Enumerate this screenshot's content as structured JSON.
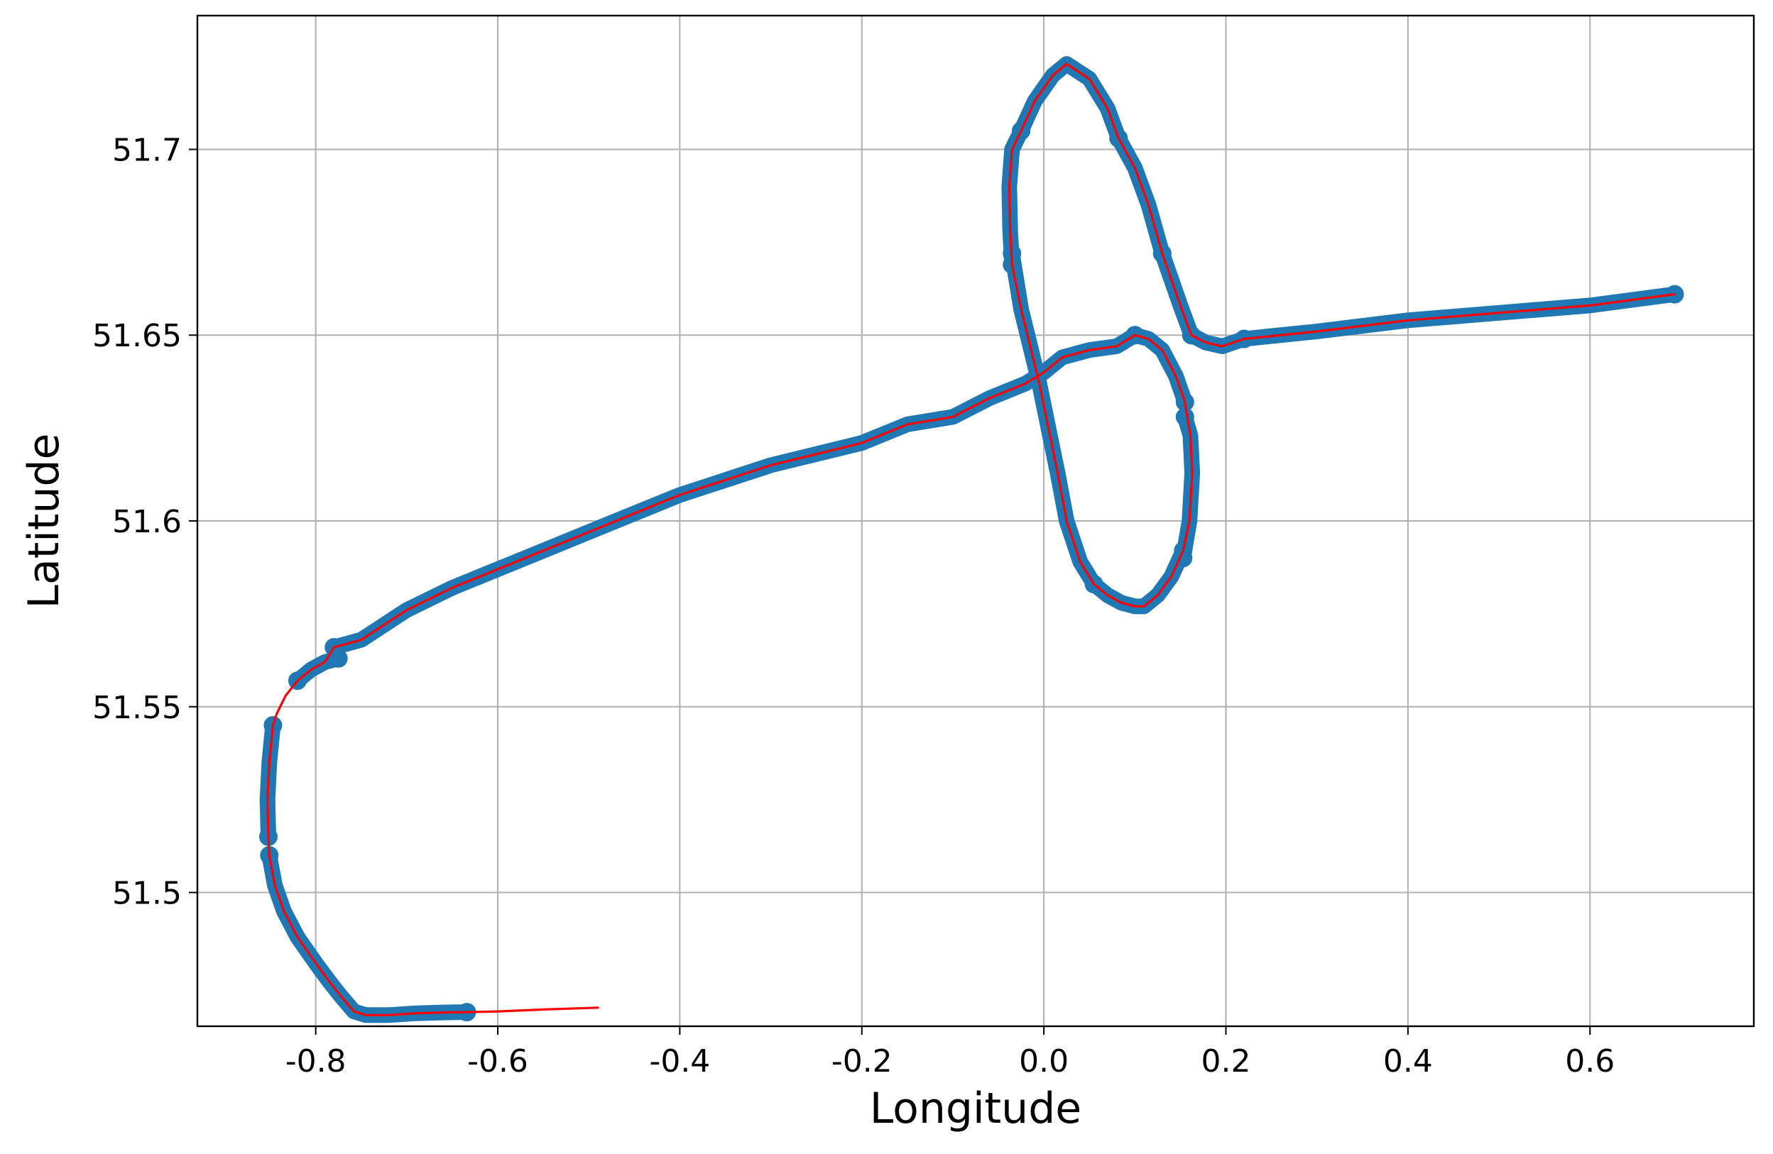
{
  "chart_data": {
    "type": "line",
    "title": "",
    "xlabel": "Longitude",
    "ylabel": "Latitude",
    "xlim": [
      -0.93,
      0.78
    ],
    "ylim": [
      51.464,
      51.736
    ],
    "x_ticks": [
      -0.8,
      -0.6,
      -0.4,
      -0.2,
      0.0,
      0.2,
      0.4,
      0.6
    ],
    "x_tick_labels": [
      "-0.8",
      "-0.6",
      "-0.4",
      "-0.2",
      "0.0",
      "0.2",
      "0.4",
      "0.6"
    ],
    "y_ticks": [
      51.5,
      51.55,
      51.6,
      51.65,
      51.7
    ],
    "y_tick_labels": [
      "51.5",
      "51.55",
      "51.6",
      "51.65",
      "51.7"
    ],
    "grid": true,
    "legend": null,
    "series": [
      {
        "kind": "scatter-trace",
        "color": "#1f77b4",
        "segments": [
          [
            [
              0.693,
              51.661
            ],
            [
              0.6,
              51.658
            ],
            [
              0.5,
              51.656
            ],
            [
              0.4,
              51.654
            ],
            [
              0.3,
              51.651
            ],
            [
              0.22,
              51.649
            ]
          ],
          [
            [
              0.22,
              51.649
            ],
            [
              0.196,
              51.647
            ],
            [
              0.178,
              51.648
            ],
            [
              0.162,
              51.65
            ]
          ],
          [
            [
              0.162,
              51.65
            ],
            [
              0.15,
              51.658
            ],
            [
              0.13,
              51.672
            ]
          ],
          [
            [
              0.13,
              51.672
            ],
            [
              0.115,
              51.685
            ],
            [
              0.1,
              51.695
            ],
            [
              0.082,
              51.703
            ]
          ],
          [
            [
              0.082,
              51.703
            ],
            [
              0.07,
              51.711
            ],
            [
              0.05,
              51.719
            ],
            [
              0.025,
              51.723
            ],
            [
              0.01,
              51.72
            ],
            [
              -0.01,
              51.713
            ],
            [
              -0.025,
              51.705
            ]
          ],
          [
            [
              -0.025,
              51.705
            ],
            [
              -0.035,
              51.7
            ],
            [
              -0.038,
              51.69
            ],
            [
              -0.037,
              51.678
            ],
            [
              -0.035,
              51.669
            ]
          ],
          [
            [
              -0.035,
              51.672
            ],
            [
              -0.025,
              51.657
            ],
            [
              -0.013,
              51.645
            ],
            [
              -0.005,
              51.637
            ],
            [
              0.005,
              51.625
            ],
            [
              0.015,
              51.613
            ],
            [
              0.025,
              51.6
            ],
            [
              0.04,
              51.589
            ],
            [
              0.055,
              51.583
            ]
          ],
          [
            [
              0.055,
              51.583
            ],
            [
              0.07,
              51.58
            ],
            [
              0.085,
              51.578
            ],
            [
              0.1,
              51.577
            ],
            [
              0.11,
              51.577
            ],
            [
              0.125,
              51.58
            ],
            [
              0.14,
              51.585
            ],
            [
              0.153,
              51.592
            ]
          ],
          [
            [
              0.153,
              51.59
            ],
            [
              0.16,
              51.6
            ],
            [
              0.163,
              51.613
            ],
            [
              0.161,
              51.623
            ],
            [
              0.155,
              51.628
            ]
          ],
          [
            [
              0.155,
              51.632
            ],
            [
              0.145,
              51.639
            ],
            [
              0.13,
              51.646
            ],
            [
              0.115,
              51.649
            ],
            [
              0.1,
              51.65
            ]
          ],
          [
            [
              0.1,
              51.65
            ],
            [
              0.08,
              51.647
            ],
            [
              0.05,
              51.646
            ],
            [
              0.02,
              51.644
            ],
            [
              0.0,
              51.64
            ],
            [
              -0.02,
              51.637
            ],
            [
              -0.06,
              51.633
            ],
            [
              -0.1,
              51.628
            ],
            [
              -0.15,
              51.626
            ],
            [
              -0.2,
              51.621
            ],
            [
              -0.3,
              51.615
            ],
            [
              -0.4,
              51.607
            ],
            [
              -0.45,
              51.602
            ],
            [
              -0.5,
              51.597
            ],
            [
              -0.55,
              51.592
            ],
            [
              -0.6,
              51.587
            ],
            [
              -0.65,
              51.582
            ],
            [
              -0.7,
              51.576
            ],
            [
              -0.75,
              51.568
            ],
            [
              -0.78,
              51.566
            ]
          ],
          [
            [
              -0.775,
              51.563
            ],
            [
              -0.79,
              51.562
            ],
            [
              -0.805,
              51.56
            ],
            [
              -0.82,
              51.557
            ]
          ],
          [
            [
              -0.847,
              51.545
            ],
            [
              -0.851,
              51.535
            ],
            [
              -0.853,
              51.525
            ],
            [
              -0.852,
              51.515
            ]
          ],
          [
            [
              -0.851,
              51.51
            ],
            [
              -0.845,
              51.502
            ],
            [
              -0.835,
              51.495
            ],
            [
              -0.82,
              51.488
            ],
            [
              -0.8,
              51.481
            ],
            [
              -0.785,
              51.476
            ],
            [
              -0.772,
              51.472
            ],
            [
              -0.758,
              51.468
            ],
            [
              -0.745,
              51.467
            ],
            [
              -0.72,
              51.467
            ],
            [
              -0.69,
              51.4675
            ],
            [
              -0.66,
              51.4677
            ],
            [
              -0.634,
              51.4678
            ]
          ]
        ]
      },
      {
        "kind": "line",
        "color": "#ff0000",
        "points": [
          [
            0.693,
            51.661
          ],
          [
            0.6,
            51.658
          ],
          [
            0.5,
            51.656
          ],
          [
            0.4,
            51.654
          ],
          [
            0.3,
            51.651
          ],
          [
            0.22,
            51.649
          ],
          [
            0.196,
            51.647
          ],
          [
            0.178,
            51.648
          ],
          [
            0.162,
            51.65
          ],
          [
            0.15,
            51.658
          ],
          [
            0.13,
            51.672
          ],
          [
            0.115,
            51.685
          ],
          [
            0.1,
            51.695
          ],
          [
            0.082,
            51.703
          ],
          [
            0.07,
            51.711
          ],
          [
            0.05,
            51.719
          ],
          [
            0.025,
            51.723
          ],
          [
            0.01,
            51.72
          ],
          [
            -0.01,
            51.713
          ],
          [
            -0.025,
            51.705
          ],
          [
            -0.035,
            51.7
          ],
          [
            -0.038,
            51.69
          ],
          [
            -0.037,
            51.678
          ],
          [
            -0.035,
            51.669
          ],
          [
            -0.025,
            51.657
          ],
          [
            -0.013,
            51.645
          ],
          [
            -0.005,
            51.637
          ],
          [
            0.005,
            51.625
          ],
          [
            0.015,
            51.613
          ],
          [
            0.025,
            51.6
          ],
          [
            0.04,
            51.589
          ],
          [
            0.055,
            51.583
          ],
          [
            0.07,
            51.58
          ],
          [
            0.085,
            51.578
          ],
          [
            0.1,
            51.577
          ],
          [
            0.11,
            51.577
          ],
          [
            0.125,
            51.58
          ],
          [
            0.14,
            51.585
          ],
          [
            0.153,
            51.592
          ],
          [
            0.16,
            51.6
          ],
          [
            0.163,
            51.613
          ],
          [
            0.161,
            51.623
          ],
          [
            0.155,
            51.632
          ],
          [
            0.145,
            51.639
          ],
          [
            0.13,
            51.646
          ],
          [
            0.115,
            51.649
          ],
          [
            0.1,
            51.65
          ],
          [
            0.08,
            51.647
          ],
          [
            0.05,
            51.646
          ],
          [
            0.02,
            51.644
          ],
          [
            0.0,
            51.64
          ],
          [
            -0.02,
            51.637
          ],
          [
            -0.06,
            51.633
          ],
          [
            -0.1,
            51.628
          ],
          [
            -0.15,
            51.626
          ],
          [
            -0.2,
            51.621
          ],
          [
            -0.3,
            51.615
          ],
          [
            -0.4,
            51.607
          ],
          [
            -0.45,
            51.602
          ],
          [
            -0.5,
            51.597
          ],
          [
            -0.55,
            51.592
          ],
          [
            -0.6,
            51.587
          ],
          [
            -0.65,
            51.582
          ],
          [
            -0.7,
            51.576
          ],
          [
            -0.75,
            51.568
          ],
          [
            -0.78,
            51.566
          ],
          [
            -0.79,
            51.562
          ],
          [
            -0.805,
            51.56
          ],
          [
            -0.82,
            51.557
          ],
          [
            -0.833,
            51.553
          ],
          [
            -0.843,
            51.548
          ],
          [
            -0.847,
            51.545
          ],
          [
            -0.851,
            51.535
          ],
          [
            -0.853,
            51.525
          ],
          [
            -0.852,
            51.515
          ],
          [
            -0.851,
            51.51
          ],
          [
            -0.845,
            51.502
          ],
          [
            -0.835,
            51.495
          ],
          [
            -0.82,
            51.488
          ],
          [
            -0.8,
            51.481
          ],
          [
            -0.785,
            51.476
          ],
          [
            -0.772,
            51.472
          ],
          [
            -0.758,
            51.468
          ],
          [
            -0.745,
            51.467
          ],
          [
            -0.72,
            51.467
          ],
          [
            -0.69,
            51.4675
          ],
          [
            -0.66,
            51.4677
          ],
          [
            -0.634,
            51.4678
          ],
          [
            -0.6,
            51.468
          ],
          [
            -0.55,
            51.4685
          ],
          [
            -0.49,
            51.469
          ]
        ]
      }
    ]
  }
}
